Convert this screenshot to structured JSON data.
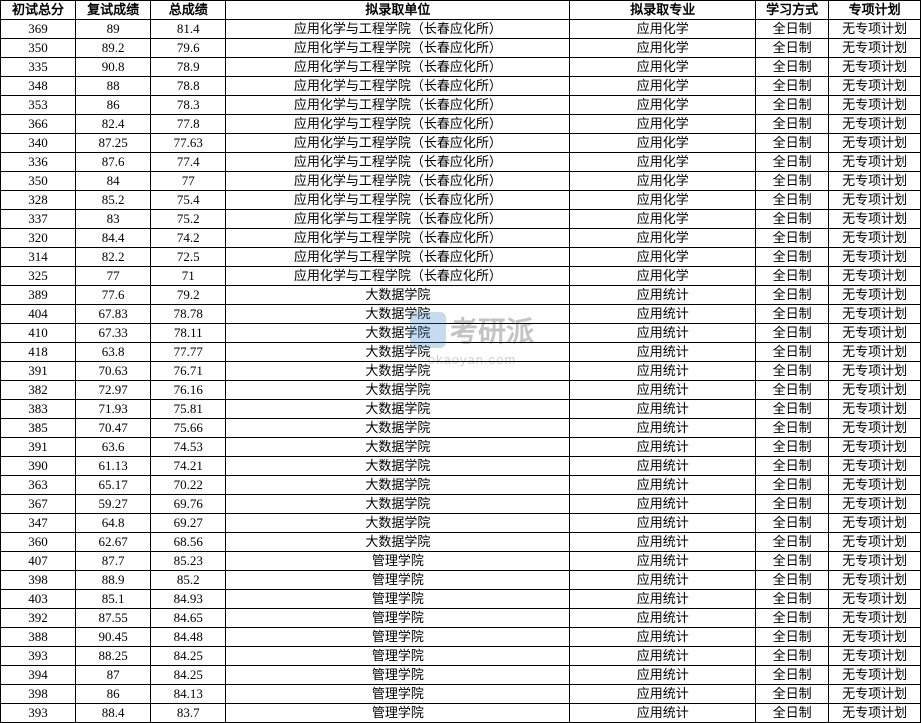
{
  "watermark": {
    "brand": "考研派",
    "url": "okaoyan.com"
  },
  "table": {
    "columns": [
      "初试总分",
      "复试成绩",
      "总成绩",
      "拟录取单位",
      "拟录取专业",
      "学习方式",
      "专项计划"
    ],
    "rows": [
      [
        "369",
        "89",
        "81.4",
        "应用化学与工程学院（长春应化所）",
        "应用化学",
        "全日制",
        "无专项计划"
      ],
      [
        "350",
        "89.2",
        "79.6",
        "应用化学与工程学院（长春应化所）",
        "应用化学",
        "全日制",
        "无专项计划"
      ],
      [
        "335",
        "90.8",
        "78.9",
        "应用化学与工程学院（长春应化所）",
        "应用化学",
        "全日制",
        "无专项计划"
      ],
      [
        "348",
        "88",
        "78.8",
        "应用化学与工程学院（长春应化所）",
        "应用化学",
        "全日制",
        "无专项计划"
      ],
      [
        "353",
        "86",
        "78.3",
        "应用化学与工程学院（长春应化所）",
        "应用化学",
        "全日制",
        "无专项计划"
      ],
      [
        "366",
        "82.4",
        "77.8",
        "应用化学与工程学院（长春应化所）",
        "应用化学",
        "全日制",
        "无专项计划"
      ],
      [
        "340",
        "87.25",
        "77.63",
        "应用化学与工程学院（长春应化所）",
        "应用化学",
        "全日制",
        "无专项计划"
      ],
      [
        "336",
        "87.6",
        "77.4",
        "应用化学与工程学院（长春应化所）",
        "应用化学",
        "全日制",
        "无专项计划"
      ],
      [
        "350",
        "84",
        "77",
        "应用化学与工程学院（长春应化所）",
        "应用化学",
        "全日制",
        "无专项计划"
      ],
      [
        "328",
        "85.2",
        "75.4",
        "应用化学与工程学院（长春应化所）",
        "应用化学",
        "全日制",
        "无专项计划"
      ],
      [
        "337",
        "83",
        "75.2",
        "应用化学与工程学院（长春应化所）",
        "应用化学",
        "全日制",
        "无专项计划"
      ],
      [
        "320",
        "84.4",
        "74.2",
        "应用化学与工程学院（长春应化所）",
        "应用化学",
        "全日制",
        "无专项计划"
      ],
      [
        "314",
        "82.2",
        "72.5",
        "应用化学与工程学院（长春应化所）",
        "应用化学",
        "全日制",
        "无专项计划"
      ],
      [
        "325",
        "77",
        "71",
        "应用化学与工程学院（长春应化所）",
        "应用化学",
        "全日制",
        "无专项计划"
      ],
      [
        "389",
        "77.6",
        "79.2",
        "大数据学院",
        "应用统计",
        "全日制",
        "无专项计划"
      ],
      [
        "404",
        "67.83",
        "78.78",
        "大数据学院",
        "应用统计",
        "全日制",
        "无专项计划"
      ],
      [
        "410",
        "67.33",
        "78.11",
        "大数据学院",
        "应用统计",
        "全日制",
        "无专项计划"
      ],
      [
        "418",
        "63.8",
        "77.77",
        "大数据学院",
        "应用统计",
        "全日制",
        "无专项计划"
      ],
      [
        "391",
        "70.63",
        "76.71",
        "大数据学院",
        "应用统计",
        "全日制",
        "无专项计划"
      ],
      [
        "382",
        "72.97",
        "76.16",
        "大数据学院",
        "应用统计",
        "全日制",
        "无专项计划"
      ],
      [
        "383",
        "71.93",
        "75.81",
        "大数据学院",
        "应用统计",
        "全日制",
        "无专项计划"
      ],
      [
        "385",
        "70.47",
        "75.66",
        "大数据学院",
        "应用统计",
        "全日制",
        "无专项计划"
      ],
      [
        "391",
        "63.6",
        "74.53",
        "大数据学院",
        "应用统计",
        "全日制",
        "无专项计划"
      ],
      [
        "390",
        "61.13",
        "74.21",
        "大数据学院",
        "应用统计",
        "全日制",
        "无专项计划"
      ],
      [
        "363",
        "65.17",
        "70.22",
        "大数据学院",
        "应用统计",
        "全日制",
        "无专项计划"
      ],
      [
        "367",
        "59.27",
        "69.76",
        "大数据学院",
        "应用统计",
        "全日制",
        "无专项计划"
      ],
      [
        "347",
        "64.8",
        "69.27",
        "大数据学院",
        "应用统计",
        "全日制",
        "无专项计划"
      ],
      [
        "360",
        "62.67",
        "68.56",
        "大数据学院",
        "应用统计",
        "全日制",
        "无专项计划"
      ],
      [
        "407",
        "87.7",
        "85.23",
        "管理学院",
        "应用统计",
        "全日制",
        "无专项计划"
      ],
      [
        "398",
        "88.9",
        "85.2",
        "管理学院",
        "应用统计",
        "全日制",
        "无专项计划"
      ],
      [
        "403",
        "85.1",
        "84.93",
        "管理学院",
        "应用统计",
        "全日制",
        "无专项计划"
      ],
      [
        "392",
        "87.55",
        "84.65",
        "管理学院",
        "应用统计",
        "全日制",
        "无专项计划"
      ],
      [
        "388",
        "90.45",
        "84.48",
        "管理学院",
        "应用统计",
        "全日制",
        "无专项计划"
      ],
      [
        "393",
        "88.25",
        "84.25",
        "管理学院",
        "应用统计",
        "全日制",
        "无专项计划"
      ],
      [
        "394",
        "87",
        "84.25",
        "管理学院",
        "应用统计",
        "全日制",
        "无专项计划"
      ],
      [
        "398",
        "86",
        "84.13",
        "管理学院",
        "应用统计",
        "全日制",
        "无专项计划"
      ],
      [
        "393",
        "88.4",
        "83.7",
        "管理学院",
        "应用统计",
        "全日制",
        "无专项计划"
      ]
    ]
  }
}
